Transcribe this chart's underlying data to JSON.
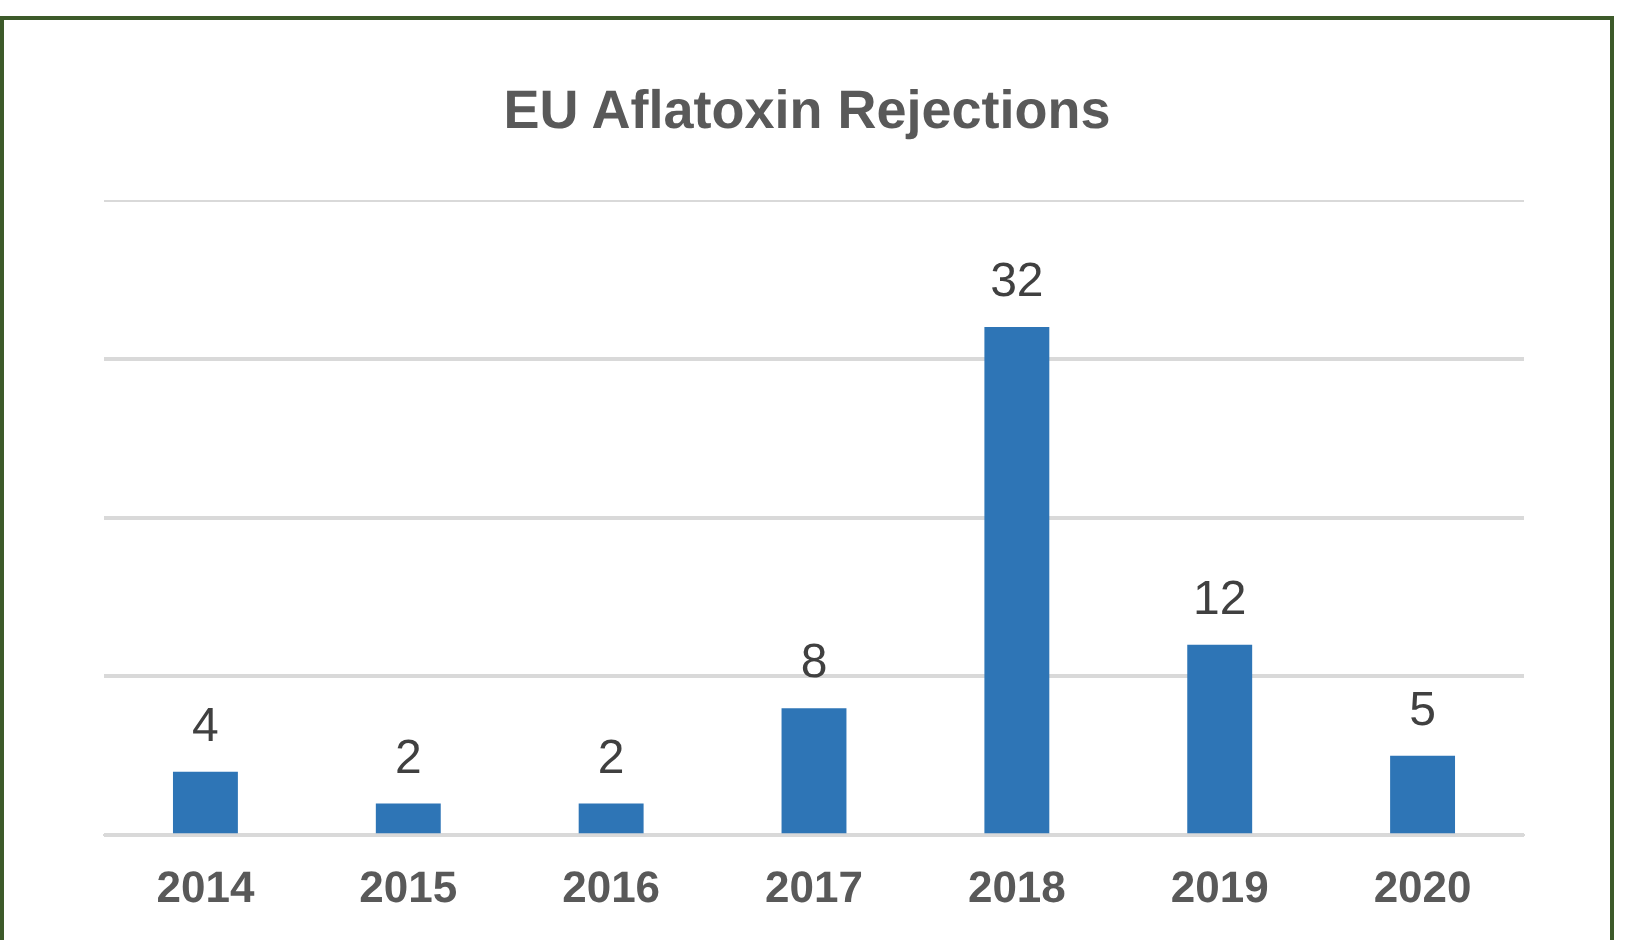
{
  "chart_data": {
    "type": "bar",
    "title": "EU Aflatoxin Rejections",
    "categories": [
      "2014",
      "2015",
      "2016",
      "2017",
      "2018",
      "2019",
      "2020"
    ],
    "values": [
      4,
      2,
      2,
      8,
      32,
      12,
      5
    ],
    "color": "#2e75b6",
    "ylim": [
      0,
      40
    ],
    "yticks": [
      {
        "value": 0,
        "label": null
      },
      {
        "value": 10,
        "label": null
      },
      {
        "value": 20,
        "label": null
      },
      {
        "value": 30,
        "label": null
      },
      {
        "value": 40,
        "label": null
      }
    ],
    "tick_labels": "x",
    "grid": "y",
    "legend": false,
    "data_labels": true
  }
}
